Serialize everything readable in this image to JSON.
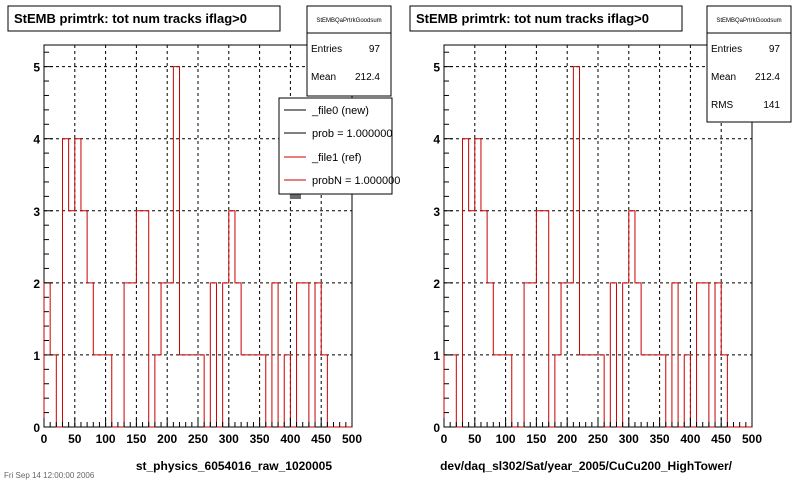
{
  "footer_text": "Fri Sep 14 12:00:00 2006",
  "chart_data": [
    {
      "type": "line",
      "title": "StEMB primtrk: tot num tracks iflag>0",
      "xlabel": "st_physics_6054016_raw_1020005",
      "ylabel": "",
      "xlim": [
        0,
        500
      ],
      "ylim": [
        0,
        5.3
      ],
      "grid": true,
      "bin_width": 10,
      "x_ticks": [
        "0",
        "50",
        "100",
        "150",
        "200",
        "250",
        "300",
        "350",
        "400",
        "450",
        "500"
      ],
      "y_ticks": [
        "0",
        "1",
        "2",
        "3",
        "4",
        "5"
      ],
      "line_color": "#cc0000",
      "values": [
        2,
        1,
        0,
        4,
        3,
        4,
        3,
        2,
        1,
        1,
        1,
        0,
        0,
        2,
        2,
        3,
        3,
        0,
        1,
        2,
        2,
        5,
        1,
        1,
        1,
        1,
        0,
        2,
        0,
        2,
        3,
        2,
        1,
        1,
        1,
        1,
        0,
        2,
        0,
        1,
        0,
        2,
        2,
        0,
        2,
        1,
        0,
        0,
        0,
        0
      ],
      "stats": {
        "name": "StEMBQaPrtrkGoodsum",
        "entries_label": "Entries",
        "entries": "97",
        "mean_label": "Mean",
        "mean": "212.4"
      },
      "legend": {
        "position": "top-right",
        "entries": [
          {
            "label": "_file0 (new)",
            "color": "#000000"
          },
          {
            "label": "prob = 1.000000",
            "color": "#000000"
          },
          {
            "label": "_file1 (ref)",
            "color": "#cc0000"
          },
          {
            "label": "probN = 1.000000",
            "color": "#cc0000"
          }
        ]
      }
    },
    {
      "type": "line",
      "title": "StEMB primtrk: tot num tracks iflag>0",
      "xlabel": "dev/daq_sl302/Sat/year_2005/CuCu200_HighTower/",
      "ylabel": "",
      "xlim": [
        0,
        500
      ],
      "ylim": [
        0,
        5.3
      ],
      "grid": true,
      "bin_width": 10,
      "x_ticks": [
        "0",
        "50",
        "100",
        "150",
        "200",
        "250",
        "300",
        "350",
        "400",
        "450",
        "500"
      ],
      "y_ticks": [
        "0",
        "1",
        "2",
        "3",
        "4",
        "5"
      ],
      "line_color": "#cc0000",
      "values": [
        1,
        1,
        0,
        4,
        3,
        4,
        3,
        2,
        1,
        1,
        1,
        0,
        0,
        2,
        2,
        3,
        3,
        0,
        1,
        2,
        2,
        5,
        1,
        1,
        1,
        1,
        0,
        2,
        0,
        2,
        3,
        2,
        1,
        1,
        1,
        1,
        0,
        2,
        0,
        1,
        0,
        2,
        2,
        0,
        2,
        1,
        0,
        0,
        0,
        0
      ],
      "stats": {
        "name": "StEMBQaPrtrkGoodsum",
        "entries_label": "Entries",
        "entries": "97",
        "mean_label": "Mean",
        "mean": "212.4",
        "rms_label": "RMS",
        "rms": "141"
      }
    }
  ]
}
